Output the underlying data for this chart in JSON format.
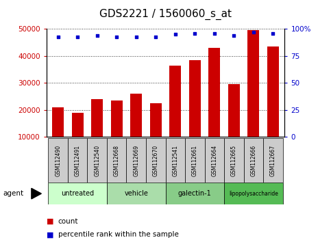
{
  "title": "GDS2221 / 1560060_s_at",
  "samples": [
    "GSM112490",
    "GSM112491",
    "GSM112540",
    "GSM112668",
    "GSM112669",
    "GSM112670",
    "GSM112541",
    "GSM112661",
    "GSM112664",
    "GSM112665",
    "GSM112666",
    "GSM112667"
  ],
  "counts": [
    21000,
    19000,
    24000,
    23500,
    26000,
    22500,
    36500,
    38500,
    43000,
    29500,
    49500,
    43500
  ],
  "percentile_ranks": [
    93,
    93,
    94,
    93,
    93,
    93,
    95,
    96,
    96,
    94,
    97,
    96
  ],
  "groups": [
    {
      "label": "untreated",
      "start": 0,
      "end": 3,
      "color": "#ccffcc"
    },
    {
      "label": "vehicle",
      "start": 3,
      "end": 6,
      "color": "#aaddaa"
    },
    {
      "label": "galectin-1",
      "start": 6,
      "end": 9,
      "color": "#88cc88"
    },
    {
      "label": "lipopolysaccharide",
      "start": 9,
      "end": 12,
      "color": "#55bb55"
    }
  ],
  "ylim_left": [
    10000,
    50000
  ],
  "yticks_left": [
    10000,
    20000,
    30000,
    40000,
    50000
  ],
  "ylim_right": [
    0,
    100
  ],
  "yticks_right": [
    0,
    25,
    50,
    75,
    100
  ],
  "bar_color": "#cc0000",
  "dot_color": "#0000cc",
  "bar_width": 0.6,
  "title_fontsize": 11,
  "tick_color_left": "#cc0000",
  "tick_color_right": "#0000cc",
  "grid_color": "#333333",
  "bg_color": "#ffffff",
  "sample_bg_color": "#cccccc"
}
